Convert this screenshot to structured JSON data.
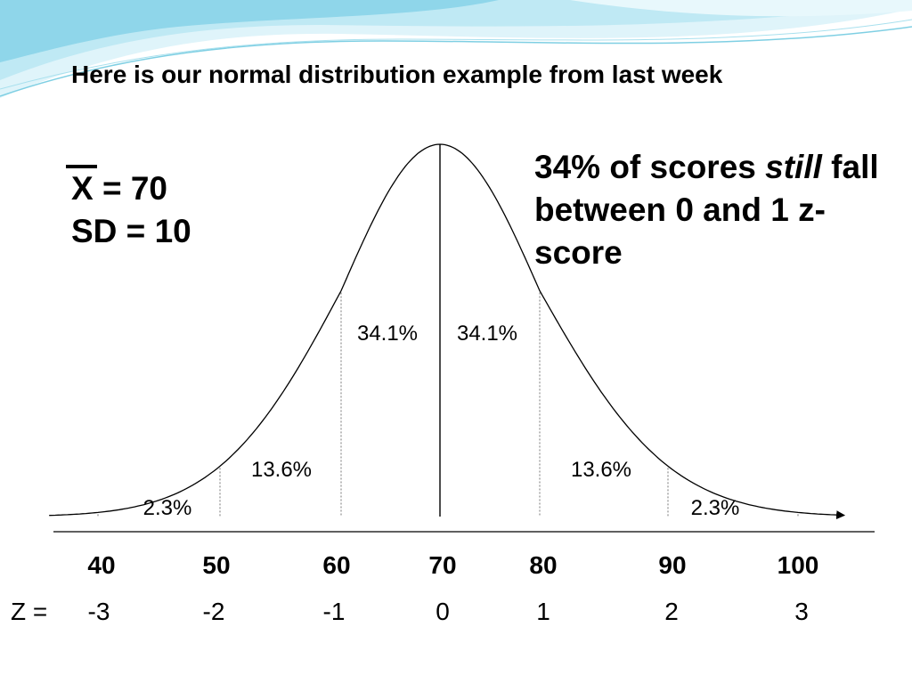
{
  "slide": {
    "title": "Here is our normal distribution example from last week"
  },
  "stats": {
    "mean_symbol": "X",
    "mean_value": " = 70",
    "sd": "SD = 10"
  },
  "callout": {
    "part1": "34% of scores ",
    "emphasis": "still",
    "part2": " fall between 0 and 1 z-score"
  },
  "chart_data": {
    "type": "area",
    "title": "",
    "mean": 70,
    "sd": 10,
    "x_ticks": [
      "40",
      "50",
      "60",
      "70",
      "80",
      "90",
      "100"
    ],
    "x_values": [
      40,
      50,
      60,
      70,
      80,
      90,
      100
    ],
    "z_label": "Z =",
    "z_ticks": [
      "-3",
      "-2",
      "-1",
      "0",
      "1",
      "2",
      "3"
    ],
    "regions": [
      {
        "from": 40,
        "to": 50,
        "label": "2.3%"
      },
      {
        "from": 50,
        "to": 60,
        "label": "13.6%"
      },
      {
        "from": 60,
        "to": 70,
        "label": "34.1%"
      },
      {
        "from": 70,
        "to": 80,
        "label": "34.1%"
      },
      {
        "from": 80,
        "to": 90,
        "label": "13.6%"
      },
      {
        "from": 90,
        "to": 100,
        "label": "2.3%"
      }
    ],
    "xlim": [
      36,
      104
    ]
  }
}
